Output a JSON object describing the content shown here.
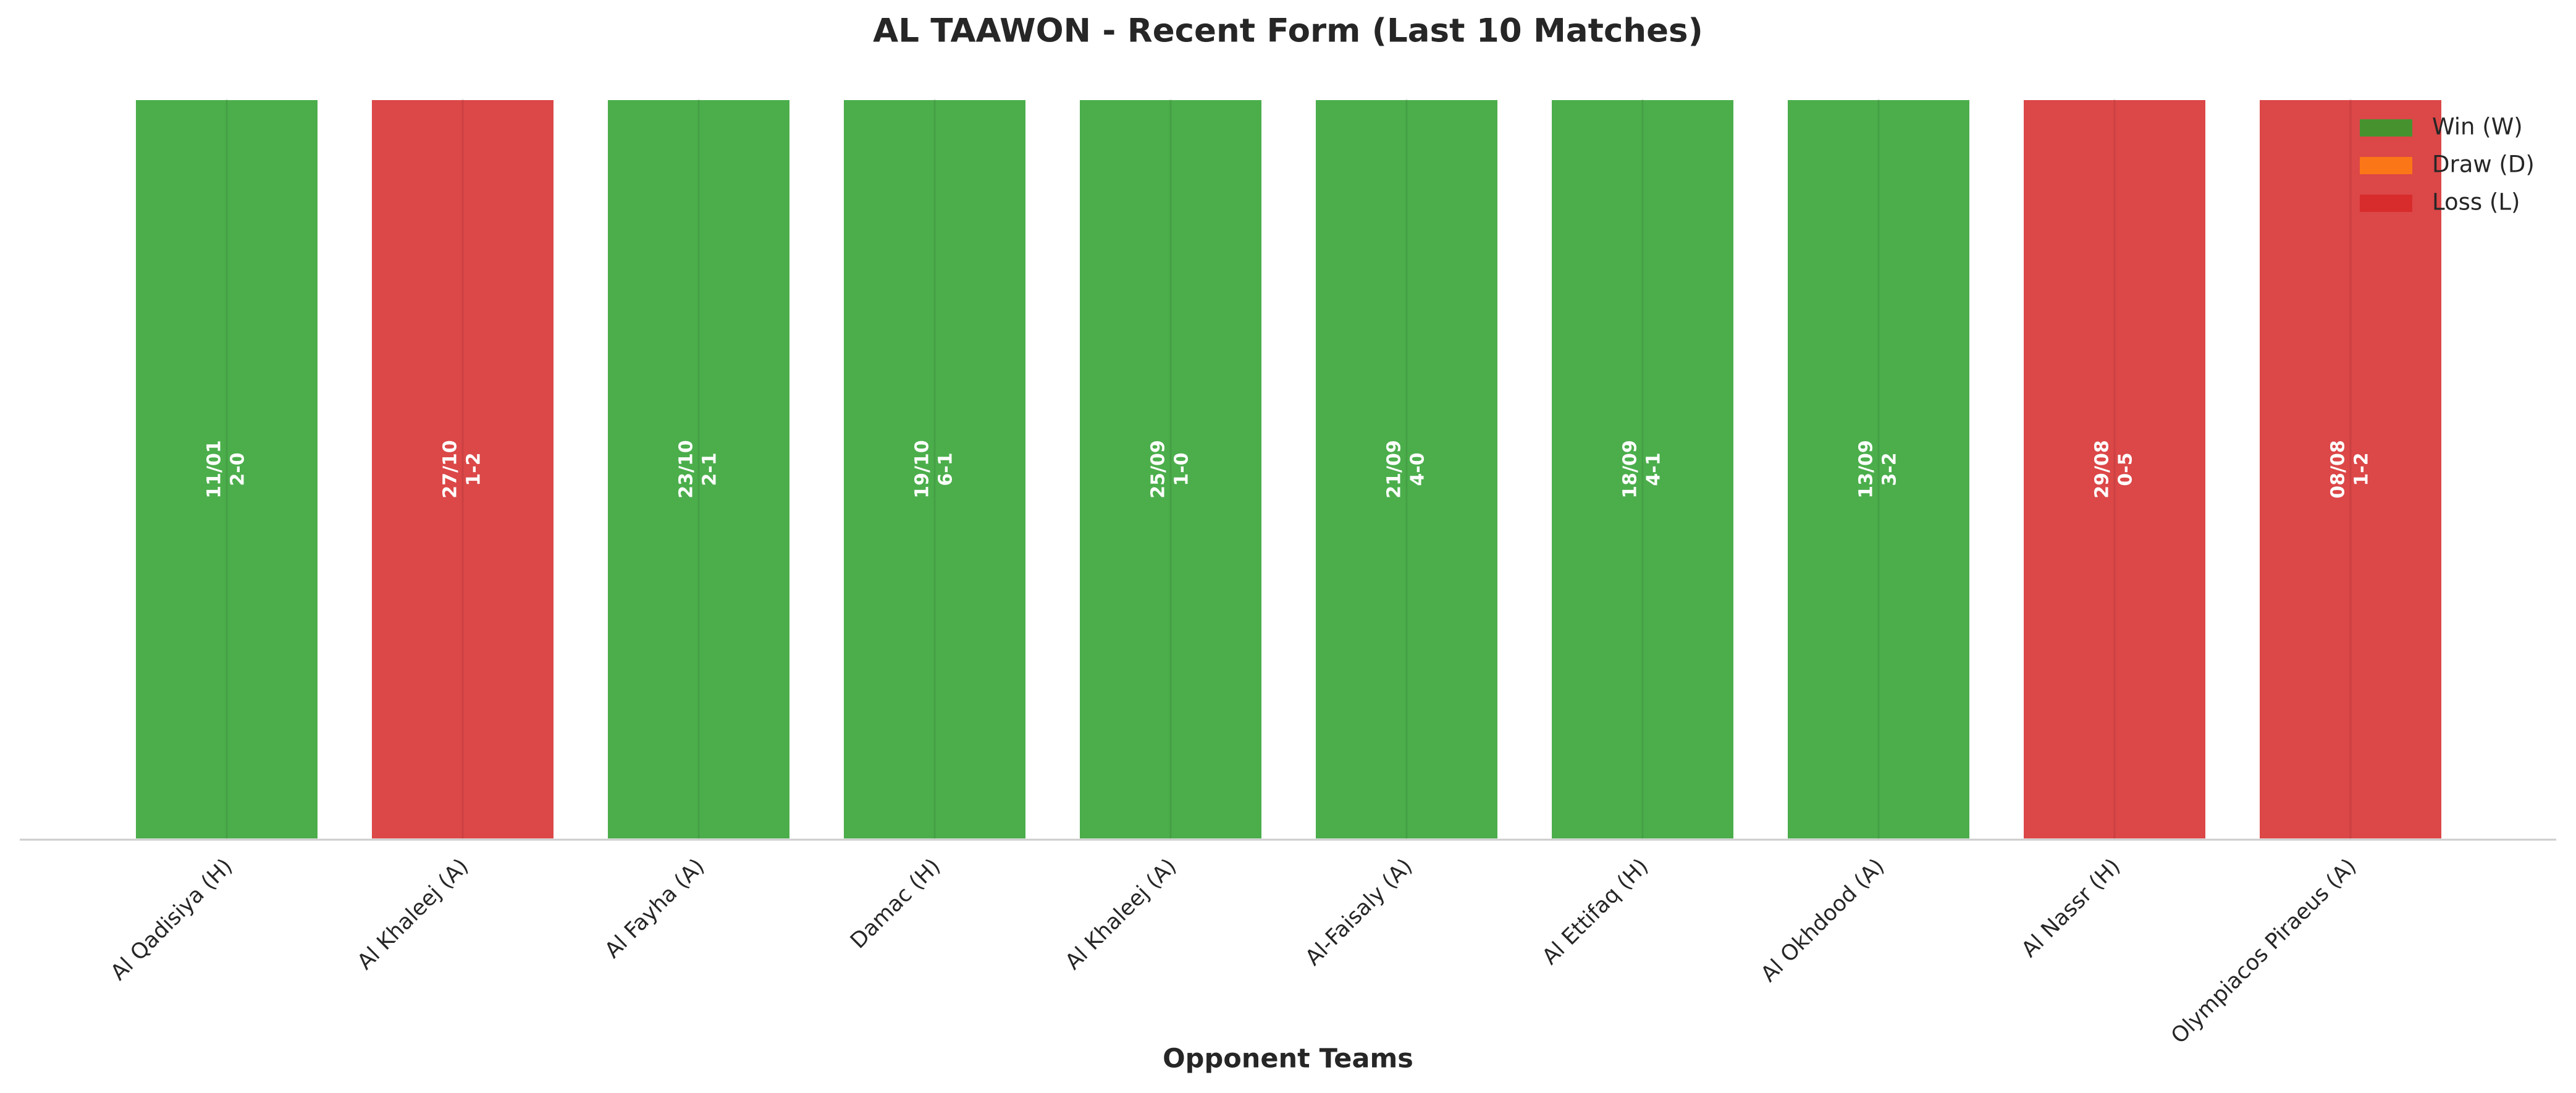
{
  "chart_data": {
    "type": "bar",
    "title": "AL TAAWON - Recent Form (Last 10 Matches)",
    "xlabel": "Opponent Teams",
    "categories": [
      "Al Qadisiya (H)",
      "Al Khaleej (A)",
      "Al Fayha (A)",
      "Damac (H)",
      "Al Khaleej (A)",
      "Al-Faisaly (A)",
      "Al Ettifaq (H)",
      "Al Okhdood (A)",
      "Al Nassr (H)",
      "Olympiacos Piraeus (A)"
    ],
    "values": [
      1,
      1,
      1,
      1,
      1,
      1,
      1,
      1,
      1,
      1
    ],
    "dates": [
      "11/01",
      "27/10",
      "23/10",
      "19/10",
      "25/09",
      "21/09",
      "18/09",
      "13/09",
      "29/08",
      "08/08"
    ],
    "scores": [
      "2-0",
      "1-2",
      "2-1",
      "6-1",
      "1-0",
      "4-0",
      "4-1",
      "3-2",
      "0-5",
      "1-2"
    ],
    "colors": [
      "#2ca02c",
      "#d62728",
      "#2ca02c",
      "#2ca02c",
      "#2ca02c",
      "#2ca02c",
      "#2ca02c",
      "#2ca02c",
      "#d62728",
      "#d62728"
    ],
    "ylim": [
      0,
      1
    ],
    "legend_position": "upper right",
    "legend": [
      {
        "name": "Win (W)",
        "color": "#2ca02c"
      },
      {
        "name": "Draw (D)",
        "color": "#ff7f0e"
      },
      {
        "name": "Loss (L)",
        "color": "#d62728"
      }
    ]
  }
}
